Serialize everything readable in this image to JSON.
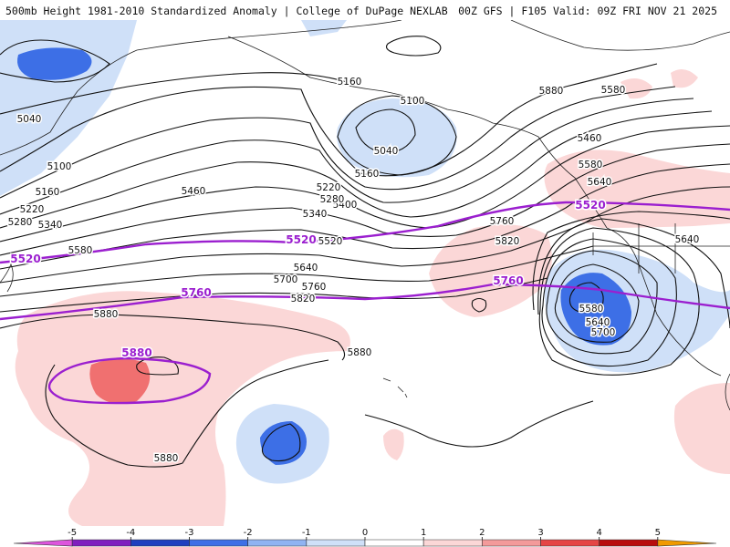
{
  "header": {
    "left": "500mb Height 1981-2010 Standardized Anomaly | College of DuPage NEXLAB",
    "right": "00Z GFS | F105 Valid: 09Z FRI NOV 21 2025"
  },
  "contour_labels": [
    {
      "text": "5040",
      "tone": "black"
    },
    {
      "text": "5100",
      "tone": "black"
    },
    {
      "text": "5160",
      "tone": "black"
    },
    {
      "text": "5220",
      "tone": "black"
    },
    {
      "text": "5280",
      "tone": "black"
    },
    {
      "text": "5340",
      "tone": "black"
    },
    {
      "text": "5580",
      "tone": "black"
    },
    {
      "text": "5460",
      "tone": "black"
    },
    {
      "text": "5400",
      "tone": "black"
    },
    {
      "text": "5520",
      "tone": "black"
    },
    {
      "text": "5640",
      "tone": "black"
    },
    {
      "text": "5700",
      "tone": "black"
    },
    {
      "text": "5760",
      "tone": "black"
    },
    {
      "text": "5820",
      "tone": "black"
    },
    {
      "text": "5880",
      "tone": "black"
    },
    {
      "text": "5160",
      "tone": "black"
    },
    {
      "text": "5100",
      "tone": "black"
    },
    {
      "text": "5040",
      "tone": "black"
    },
    {
      "text": "5160",
      "tone": "black"
    },
    {
      "text": "5220",
      "tone": "black"
    },
    {
      "text": "5280",
      "tone": "black"
    },
    {
      "text": "5340",
      "tone": "black"
    },
    {
      "text": "5460",
      "tone": "black"
    },
    {
      "text": "5580",
      "tone": "black"
    },
    {
      "text": "5640",
      "tone": "black"
    },
    {
      "text": "5760",
      "tone": "black"
    },
    {
      "text": "5820",
      "tone": "black"
    },
    {
      "text": "5640",
      "tone": "black"
    },
    {
      "text": "5580",
      "tone": "black"
    },
    {
      "text": "5640",
      "tone": "black"
    },
    {
      "text": "5700",
      "tone": "black"
    },
    {
      "text": "5880",
      "tone": "black"
    },
    {
      "text": "5880",
      "tone": "black"
    },
    {
      "text": "5880",
      "tone": "black"
    },
    {
      "text": "5580",
      "tone": "black"
    },
    {
      "text": "5520",
      "tone": "purple"
    },
    {
      "text": "5520",
      "tone": "purple"
    },
    {
      "text": "5520",
      "tone": "purple"
    },
    {
      "text": "5760",
      "tone": "purple"
    },
    {
      "text": "5760",
      "tone": "purple"
    },
    {
      "text": "5880",
      "tone": "purple"
    }
  ],
  "colorbar": {
    "ticks": [
      "-5",
      "-4",
      "-3",
      "-2",
      "-1",
      "0",
      "1",
      "2",
      "3",
      "4",
      "5"
    ],
    "colors": [
      "#dd55dd",
      "#7f1fbf",
      "#1f3fbf",
      "#3d6fe6",
      "#8fb3f2",
      "#cfe0f8",
      "#ffffff",
      "#fbd7d7",
      "#f39a9a",
      "#e54545",
      "#b80d0d",
      "#f09a00"
    ]
  },
  "colors": {
    "accent_purple": "#9b1fcf",
    "contour": "#111111",
    "neg_light": "#cfe0f8",
    "neg_mid": "#8fb3f2",
    "neg_strong": "#3d6fe6",
    "pos_light": "#fbd7d7",
    "pos_mid": "#f39a9a",
    "pos_strong": "#f07070"
  }
}
